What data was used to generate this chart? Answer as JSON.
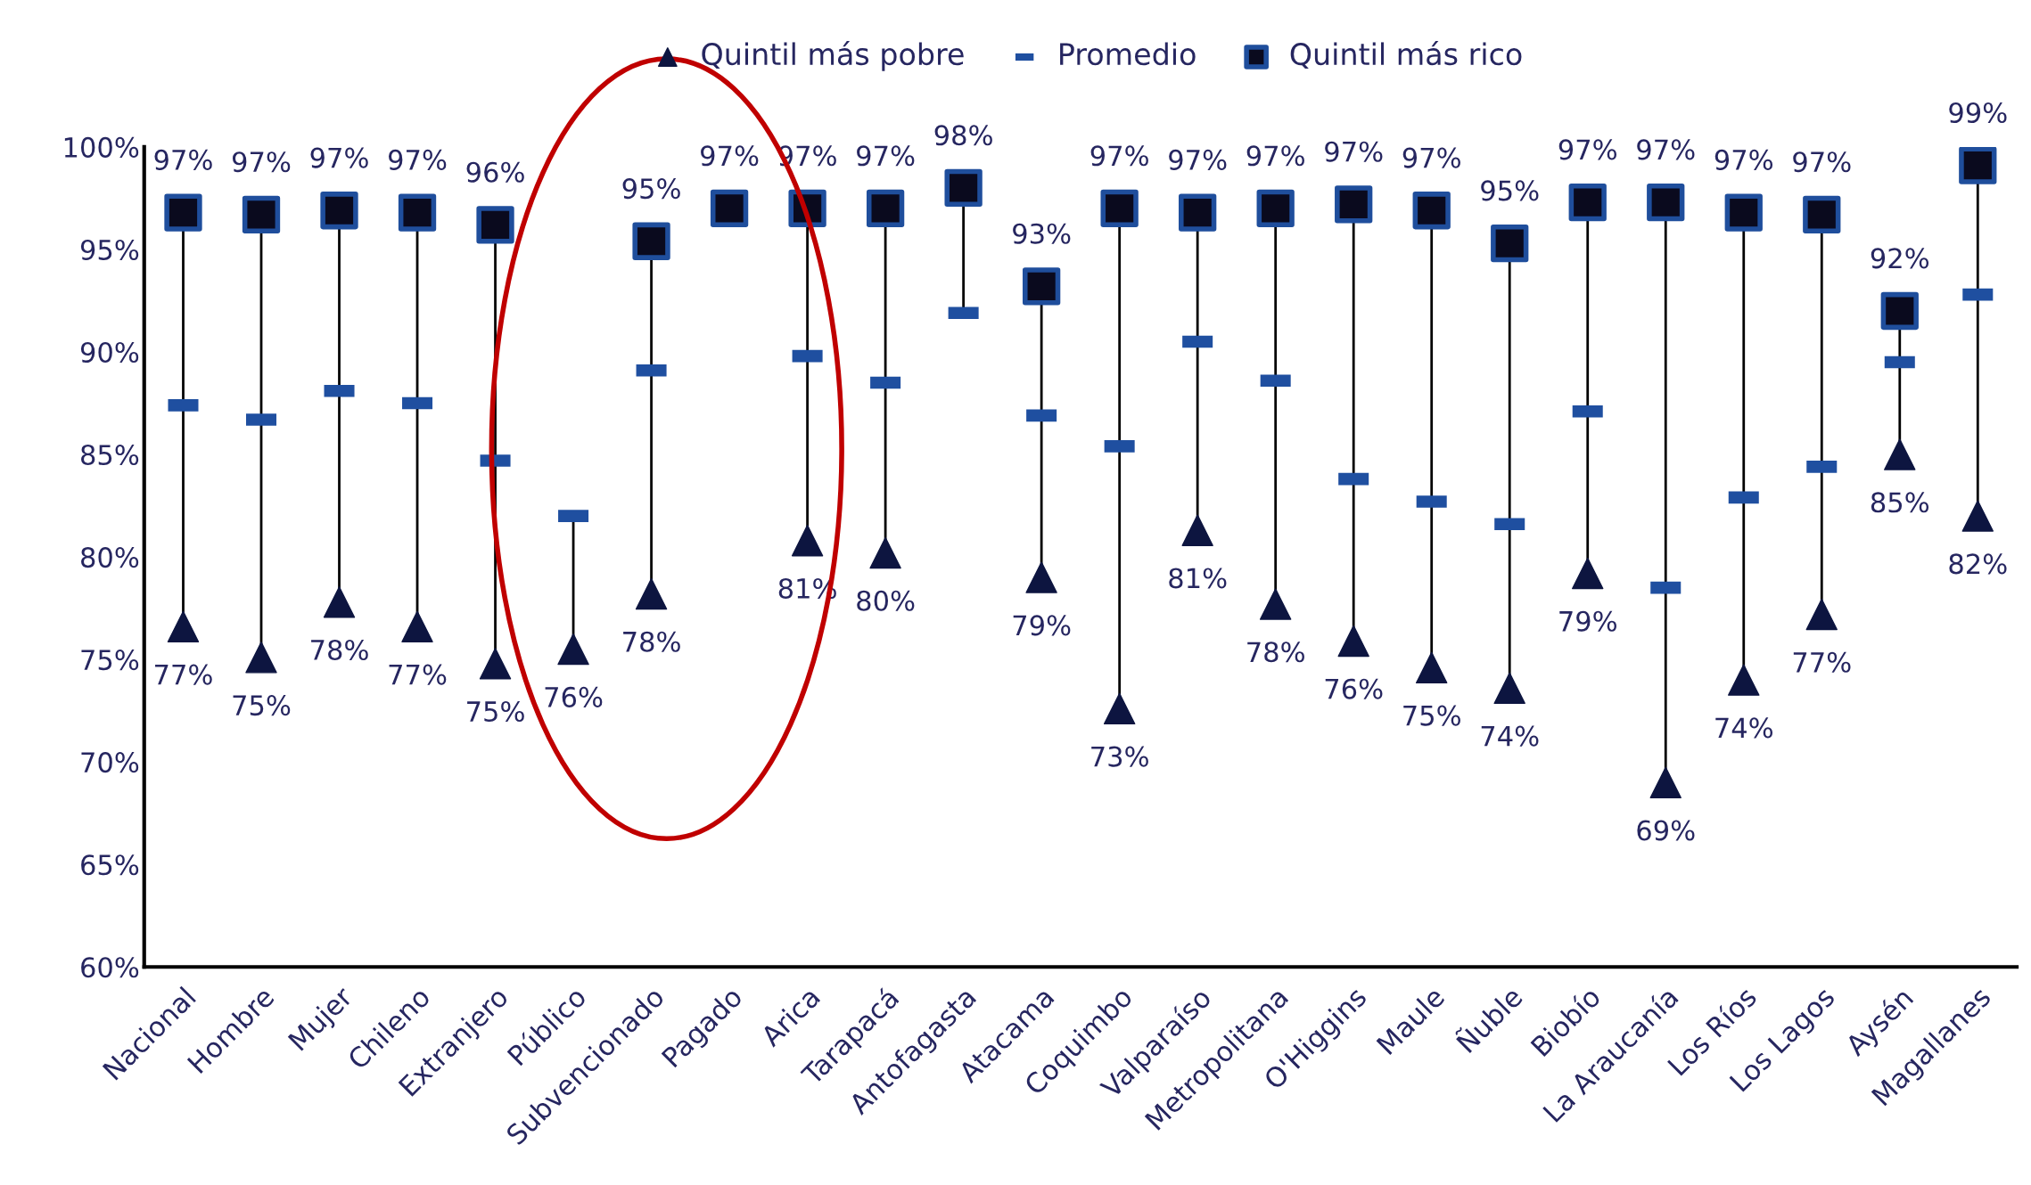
{
  "chart_data": {
    "type": "scatter",
    "categories": [
      "Nacional",
      "Hombre",
      "Mujer",
      "Chileno",
      "Extranjero",
      "Público",
      "Subvencionado",
      "Pagado",
      "Arica",
      "Tarapacá",
      "Antofagasta",
      "Atacama",
      "Coquimbo",
      "Valparaíso",
      "Metropolitana",
      "O'Higgins",
      "Maule",
      "Ñuble",
      "Biobío",
      "La Araucanía",
      "Los Ríos",
      "Los Lagos",
      "Aysén",
      "Magallanes"
    ],
    "series": [
      {
        "name": "Quintil más pobre",
        "color": "#0d1540",
        "marker": "triangle",
        "values": [
          76.6,
          75.1,
          77.8,
          76.6,
          74.8,
          75.5,
          78.2,
          null,
          80.8,
          80.2,
          null,
          79.0,
          72.6,
          81.3,
          77.7,
          75.9,
          74.6,
          73.6,
          79.2,
          69.0,
          74.0,
          77.2,
          85.0,
          82.0
        ],
        "value_labels": [
          "77%",
          "75%",
          "78%",
          "77%",
          "75%",
          "76%",
          "78%",
          null,
          "81%",
          "80%",
          null,
          "79%",
          "73%",
          "81%",
          "78%",
          "76%",
          "75%",
          "74%",
          "79%",
          "69%",
          "74%",
          "77%",
          "85%",
          "82%"
        ]
      },
      {
        "name": "Promedio",
        "color": "#1f4fa0",
        "values": [
          87.4,
          86.7,
          88.1,
          87.5,
          84.7,
          82.0,
          89.1,
          null,
          89.8,
          88.5,
          91.9,
          86.9,
          85.4,
          90.5,
          88.6,
          83.8,
          82.7,
          81.6,
          87.1,
          78.5,
          82.9,
          84.4,
          89.5,
          92.8
        ]
      },
      {
        "name": "Quintil más rico",
        "color": "#1f4e9c",
        "marker": "square",
        "values": [
          96.8,
          96.7,
          96.9,
          96.8,
          96.2,
          null,
          95.4,
          97.0,
          97.0,
          97.0,
          98.0,
          93.2,
          97.0,
          96.8,
          97.0,
          97.2,
          96.9,
          95.3,
          97.3,
          97.3,
          96.8,
          96.7,
          92.0,
          99.1
        ],
        "value_labels": [
          "97%",
          "97%",
          "97%",
          "97%",
          "96%",
          null,
          "95%",
          "97%",
          "97%",
          "97%",
          "98%",
          "93%",
          "97%",
          "97%",
          "97%",
          "97%",
          "97%",
          "95%",
          "97%",
          "97%",
          "97%",
          "97%",
          "92%",
          "99%"
        ]
      }
    ],
    "ylim": [
      60,
      100
    ],
    "yticks": [
      {
        "value": 60,
        "label": "60%"
      },
      {
        "value": 65,
        "label": "65%"
      },
      {
        "value": 70,
        "label": "70%"
      },
      {
        "value": 75,
        "label": "75%"
      },
      {
        "value": 80,
        "label": "80%"
      },
      {
        "value": 85,
        "label": "85%"
      },
      {
        "value": 90,
        "label": "90%"
      },
      {
        "value": 95,
        "label": "95%"
      },
      {
        "value": 100,
        "label": "100%"
      }
    ],
    "legend": "top"
  }
}
